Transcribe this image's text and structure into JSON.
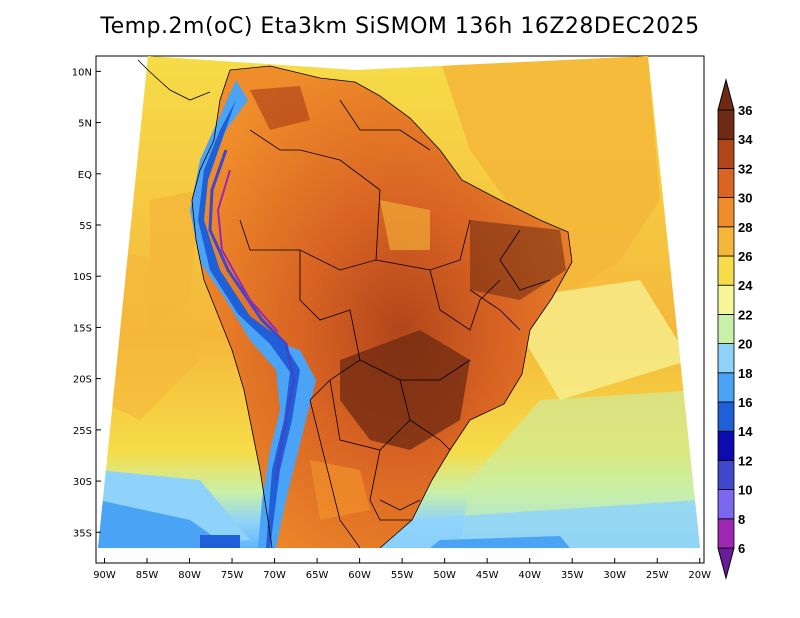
{
  "title": "Temp.2m(oC) Eta3km SiSMOM 136h 16Z28DEC2025",
  "map": {
    "lon_range": [
      -91,
      -19.5
    ],
    "lat_range": [
      -38,
      11.5
    ],
    "lon_ticks": [
      "90W",
      "85W",
      "80W",
      "75W",
      "70W",
      "65W",
      "60W",
      "55W",
      "50W",
      "45W",
      "40W",
      "35W",
      "30W",
      "25W",
      "20W"
    ],
    "lon_values": [
      -90,
      -85,
      -80,
      -75,
      -70,
      -65,
      -60,
      -55,
      -50,
      -45,
      -40,
      -35,
      -30,
      -25,
      -20
    ],
    "lat_ticks": [
      "10N",
      "5N",
      "EQ",
      "5S",
      "10S",
      "15S",
      "20S",
      "25S",
      "30S",
      "35S"
    ],
    "lat_values": [
      10,
      5,
      0,
      -5,
      -10,
      -15,
      -20,
      -25,
      -30,
      -35
    ]
  },
  "colorbar": {
    "labels": [
      "6",
      "8",
      "10",
      "12",
      "14",
      "16",
      "18",
      "20",
      "22",
      "24",
      "26",
      "28",
      "30",
      "32",
      "34",
      "36"
    ],
    "colors": [
      "#6a1b9a",
      "#9c27b0",
      "#7b68ee",
      "#3f48cc",
      "#0b0bb0",
      "#1f5fd8",
      "#4aa3f5",
      "#8fd3fb",
      "#c9f0a8",
      "#f7f79a",
      "#f6dc48",
      "#f5b73a",
      "#ef8d2a",
      "#d96423",
      "#b2461b",
      "#6e2a12"
    ]
  }
}
